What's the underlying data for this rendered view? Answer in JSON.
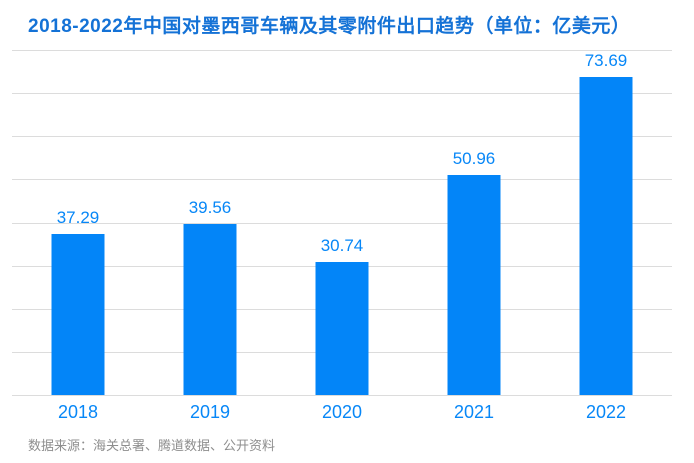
{
  "title": "2018-2022年中国对墨西哥车辆及其零附件出口趋势（单位：亿美元）",
  "source_note": "数据来源：海关总署、腾道数据、公开资料",
  "colors": {
    "title": "#1472D6",
    "bar": "#0385F8",
    "value_label": "#0787F7",
    "x_tick": "#0787F7",
    "gridline": "#DCDCDC",
    "source": "#8E8E8E",
    "background": "#FFFFFF"
  },
  "chart_data": {
    "type": "bar",
    "title": "2018-2022年中国对墨西哥车辆及其零附件出口趋势（单位：亿美元）",
    "categories": [
      "2018",
      "2019",
      "2020",
      "2021",
      "2022"
    ],
    "values": [
      37.29,
      39.56,
      30.74,
      50.96,
      73.69
    ],
    "value_labels": [
      "37.29",
      "39.56",
      "30.74",
      "50.96",
      "73.69"
    ],
    "unit": "亿美元",
    "xlabel": "",
    "ylabel": "",
    "ylim": [
      0,
      80
    ],
    "gridline_interval": 10,
    "grid": true,
    "legend": "none",
    "y_tick_labels_visible": false
  }
}
